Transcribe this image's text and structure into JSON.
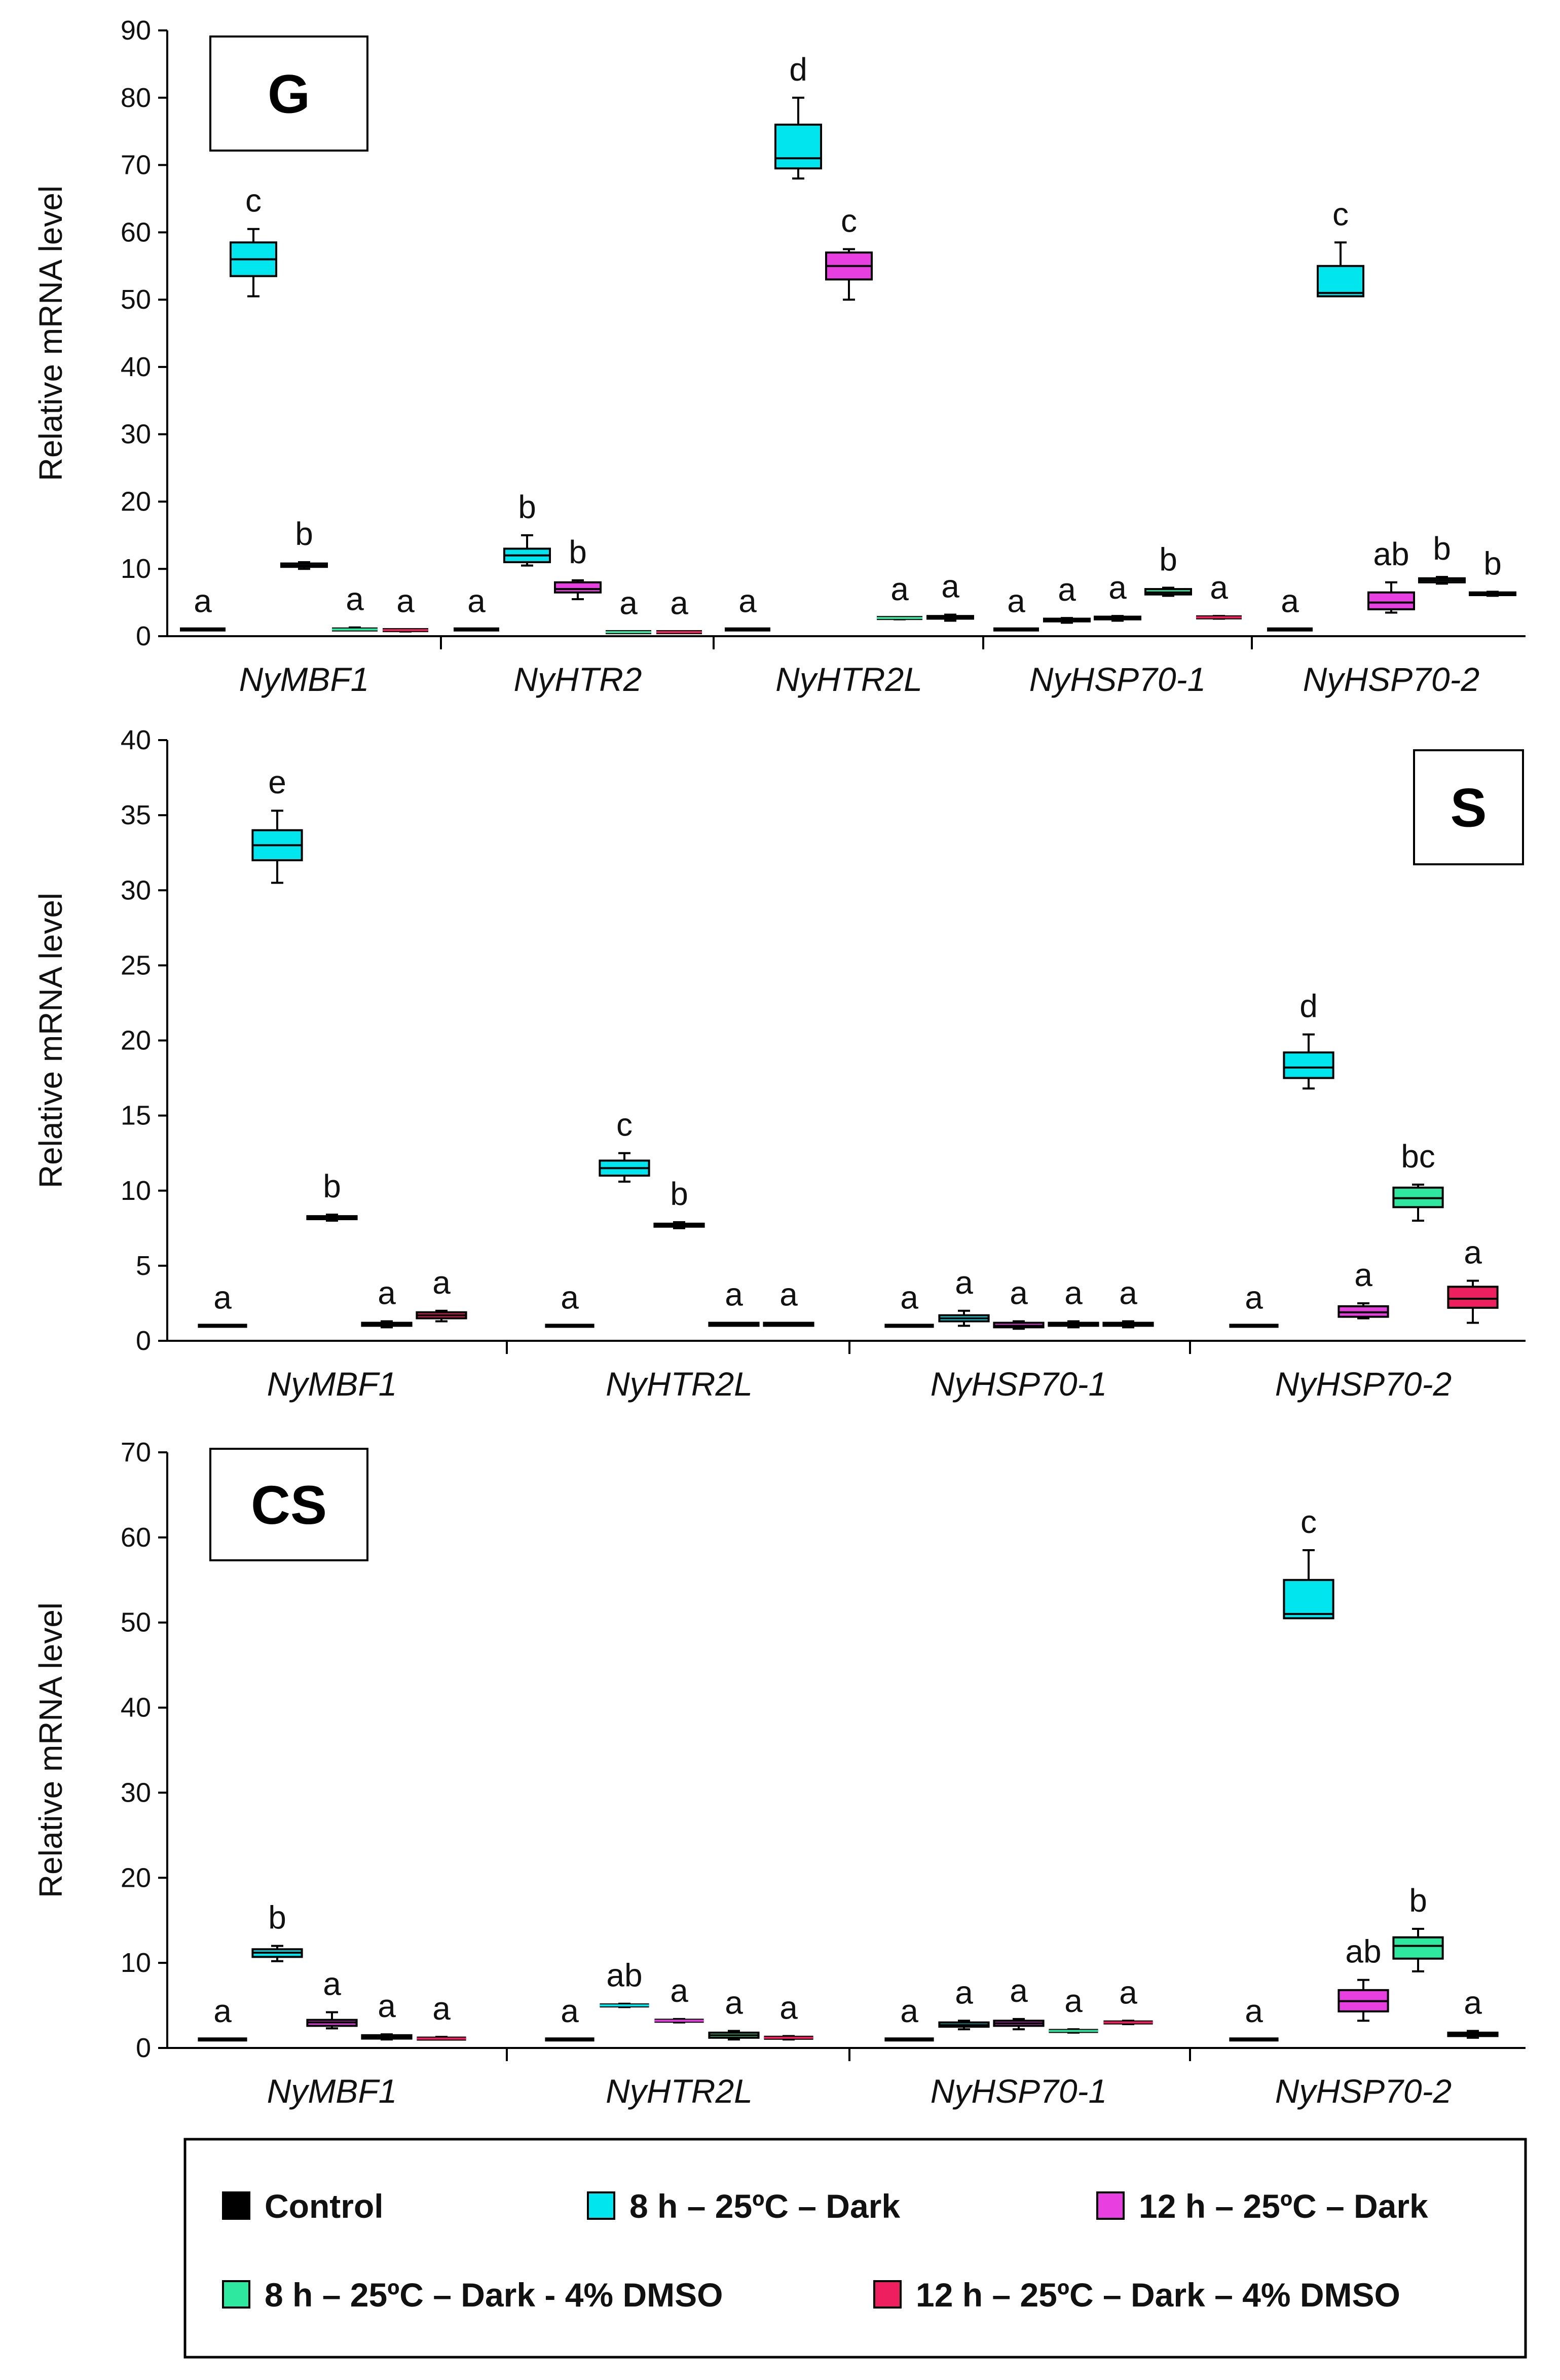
{
  "colors": {
    "control": "#000000",
    "h8_dark": "#00E5EE",
    "h12_dark": "#E83FE0",
    "h8_dmso": "#2EE8A0",
    "h12_dmso": "#EE1F5E"
  },
  "legend": {
    "items": [
      {
        "key": "control",
        "label": "Control"
      },
      {
        "key": "h8_dark",
        "label": "8 h – 25ºC – Dark"
      },
      {
        "key": "h12_dark",
        "label": "12 h – 25ºC – Dark"
      },
      {
        "key": "h8_dmso",
        "label": "8 h – 25ºC – Dark - 4% DMSO"
      },
      {
        "key": "h12_dmso",
        "label": "12 h – 25ºC – Dark – 4% DMSO"
      }
    ]
  },
  "chart_data": [
    {
      "type": "box",
      "panel_label": "G",
      "ylabel": "Relative  mRNA  level",
      "ylim": [
        0,
        90
      ],
      "yticks": [
        0,
        10,
        20,
        30,
        40,
        50,
        60,
        70,
        80,
        90
      ],
      "categories": [
        "NyMBF1",
        "NyHTR2",
        "NyHTR2L",
        "NyHSP70-1",
        "NyHSP70-2"
      ],
      "series_keys": [
        "control",
        "h8_dark",
        "h12_dark",
        "h8_dmso",
        "h12_dmso"
      ],
      "groups": [
        {
          "gene": "NyMBF1",
          "boxes": [
            {
              "s": "control",
              "stats": [
                1,
                1,
                1,
                1,
                1
              ],
              "letter": "a"
            },
            {
              "s": "h8_dark",
              "stats": [
                50.5,
                53.5,
                56,
                58.5,
                60.5
              ],
              "letter": "c"
            },
            {
              "s": "h12_dark",
              "stats": [
                10,
                10.3,
                10.5,
                10.8,
                11
              ],
              "letter": "b"
            },
            {
              "s": "h8_dmso",
              "stats": [
                1,
                1,
                1,
                1.2,
                1.3
              ],
              "letter": "a"
            },
            {
              "s": "h12_dmso",
              "stats": [
                0.7,
                0.8,
                0.9,
                1,
                1
              ],
              "letter": "a"
            }
          ]
        },
        {
          "gene": "NyHTR2",
          "boxes": [
            {
              "s": "control",
              "stats": [
                1,
                1,
                1,
                1,
                1
              ],
              "letter": "a"
            },
            {
              "s": "h8_dark",
              "stats": [
                10.5,
                11,
                12,
                13,
                15
              ],
              "letter": "b"
            },
            {
              "s": "h12_dark",
              "stats": [
                5.5,
                6.5,
                7,
                8,
                8.3
              ],
              "letter": "b"
            },
            {
              "s": "h8_dmso",
              "stats": [
                0.5,
                0.5,
                0.6,
                0.7,
                0.7
              ],
              "letter": "a"
            },
            {
              "s": "h12_dmso",
              "stats": [
                0.5,
                0.5,
                0.6,
                0.7,
                0.7
              ],
              "letter": "a"
            }
          ]
        },
        {
          "gene": "NyHTR2L",
          "boxes": [
            {
              "s": "control",
              "stats": [
                1,
                1,
                1,
                1,
                1
              ],
              "letter": "a"
            },
            {
              "s": "h8_dark",
              "stats": [
                68,
                69.5,
                71,
                76,
                80
              ],
              "letter": "d"
            },
            {
              "s": "h12_dark",
              "stats": [
                50,
                53,
                55,
                57,
                57.5
              ],
              "letter": "c"
            },
            {
              "s": "h8_dmso",
              "stats": [
                2.5,
                2.6,
                2.7,
                2.8,
                2.8
              ],
              "letter": "a"
            },
            {
              "s": "h12_dmso",
              "stats": [
                2.3,
                2.6,
                2.8,
                3,
                3.2
              ],
              "letter": "a"
            }
          ]
        },
        {
          "gene": "NyHSP70-1",
          "boxes": [
            {
              "s": "control",
              "stats": [
                1,
                1,
                1,
                1,
                1
              ],
              "letter": "a"
            },
            {
              "s": "h8_dark",
              "stats": [
                2,
                2.2,
                2.4,
                2.6,
                2.7
              ],
              "letter": "a"
            },
            {
              "s": "h12_dark",
              "stats": [
                2.3,
                2.5,
                2.7,
                2.9,
                3
              ],
              "letter": "a"
            },
            {
              "s": "h8_dmso",
              "stats": [
                6,
                6.2,
                6.5,
                7,
                7.2
              ],
              "letter": "b"
            },
            {
              "s": "h12_dmso",
              "stats": [
                2.6,
                2.7,
                2.8,
                2.9,
                3
              ],
              "letter": "a"
            }
          ]
        },
        {
          "gene": "NyHSP70-2",
          "boxes": [
            {
              "s": "control",
              "stats": [
                1,
                1,
                1,
                1,
                1
              ],
              "letter": "a"
            },
            {
              "s": "h8_dark",
              "stats": [
                50.5,
                50.5,
                51,
                55,
                58.5
              ],
              "letter": "c"
            },
            {
              "s": "h12_dark",
              "stats": [
                3.5,
                4,
                5,
                6.5,
                8
              ],
              "letter": "ab"
            },
            {
              "s": "h8_dmso",
              "stats": [
                7.8,
                8,
                8.3,
                8.6,
                8.8
              ],
              "letter": "b"
            },
            {
              "s": "h12_dmso",
              "stats": [
                6,
                6.1,
                6.3,
                6.5,
                6.6
              ],
              "letter": "b"
            }
          ]
        }
      ]
    },
    {
      "type": "box",
      "panel_label": "S",
      "ylabel": "Relative  mRNA  level",
      "ylim": [
        0,
        40
      ],
      "yticks": [
        0,
        5,
        10,
        15,
        20,
        25,
        30,
        35,
        40
      ],
      "categories": [
        "NyMBF1",
        "NyHTR2L",
        "NyHSP70-1",
        "NyHSP70-2"
      ],
      "series_keys": [
        "control",
        "h8_dark",
        "h12_dark",
        "h8_dmso",
        "h12_dmso"
      ],
      "groups": [
        {
          "gene": "NyMBF1",
          "boxes": [
            {
              "s": "control",
              "stats": [
                1,
                1,
                1,
                1,
                1
              ],
              "letter": "a"
            },
            {
              "s": "h8_dark",
              "stats": [
                30.5,
                32,
                33,
                34,
                35.3
              ],
              "letter": "e"
            },
            {
              "s": "h12_dark",
              "stats": [
                8,
                8.1,
                8.2,
                8.3,
                8.4
              ],
              "letter": "b"
            },
            {
              "s": "h8_dmso",
              "stats": [
                0.9,
                1,
                1.1,
                1.2,
                1.3
              ],
              "letter": "a"
            },
            {
              "s": "h12_dmso",
              "stats": [
                1.3,
                1.5,
                1.7,
                1.9,
                2
              ],
              "letter": "a"
            }
          ]
        },
        {
          "gene": "NyHTR2L",
          "boxes": [
            {
              "s": "control",
              "stats": [
                1,
                1,
                1,
                1,
                1
              ],
              "letter": "a"
            },
            {
              "s": "h8_dark",
              "stats": [
                10.6,
                11,
                11.5,
                12,
                12.5
              ],
              "letter": "c"
            },
            {
              "s": "h12_dark",
              "stats": [
                7.5,
                7.6,
                7.7,
                7.8,
                7.9
              ],
              "letter": "b"
            },
            {
              "s": "h8_dmso",
              "stats": [
                1,
                1,
                1.1,
                1.2,
                1.2
              ],
              "letter": "a"
            },
            {
              "s": "h12_dmso",
              "stats": [
                1,
                1,
                1.1,
                1.2,
                1.2
              ],
              "letter": "a"
            }
          ]
        },
        {
          "gene": "NyHSP70-1",
          "boxes": [
            {
              "s": "control",
              "stats": [
                1,
                1,
                1,
                1,
                1
              ],
              "letter": "a"
            },
            {
              "s": "h8_dark",
              "stats": [
                1,
                1.3,
                1.5,
                1.7,
                2
              ],
              "letter": "a"
            },
            {
              "s": "h12_dark",
              "stats": [
                0.8,
                0.9,
                1,
                1.2,
                1.3
              ],
              "letter": "a"
            },
            {
              "s": "h8_dmso",
              "stats": [
                0.9,
                1,
                1.1,
                1.2,
                1.3
              ],
              "letter": "a"
            },
            {
              "s": "h12_dmso",
              "stats": [
                0.9,
                1,
                1.1,
                1.2,
                1.3
              ],
              "letter": "a"
            }
          ]
        },
        {
          "gene": "NyHSP70-2",
          "boxes": [
            {
              "s": "control",
              "stats": [
                1,
                1,
                1,
                1,
                1
              ],
              "letter": "a"
            },
            {
              "s": "h8_dark",
              "stats": [
                16.8,
                17.5,
                18.2,
                19.2,
                20.4
              ],
              "letter": "d"
            },
            {
              "s": "h12_dark",
              "stats": [
                1.5,
                1.6,
                1.9,
                2.3,
                2.5
              ],
              "letter": "a"
            },
            {
              "s": "h8_dmso",
              "stats": [
                8,
                8.9,
                9.5,
                10.2,
                10.4
              ],
              "letter": "bc"
            },
            {
              "s": "h12_dmso",
              "stats": [
                1.2,
                2.2,
                2.8,
                3.6,
                4
              ],
              "letter": "a"
            }
          ]
        }
      ]
    },
    {
      "type": "box",
      "panel_label": "CS",
      "ylabel": "Relative  mRNA  level",
      "ylim": [
        0,
        70
      ],
      "yticks": [
        0,
        10,
        20,
        30,
        40,
        50,
        60,
        70
      ],
      "categories": [
        "NyMBF1",
        "NyHTR2L",
        "NyHSP70-1",
        "NyHSP70-2"
      ],
      "series_keys": [
        "control",
        "h8_dark",
        "h12_dark",
        "h8_dmso",
        "h12_dmso"
      ],
      "groups": [
        {
          "gene": "NyMBF1",
          "boxes": [
            {
              "s": "control",
              "stats": [
                1,
                1,
                1,
                1,
                1
              ],
              "letter": "a"
            },
            {
              "s": "h8_dark",
              "stats": [
                10.2,
                10.7,
                11.2,
                11.6,
                12
              ],
              "letter": "b"
            },
            {
              "s": "h12_dark",
              "stats": [
                2.3,
                2.6,
                3,
                3.3,
                4.2
              ],
              "letter": "a"
            },
            {
              "s": "h8_dmso",
              "stats": [
                1,
                1.1,
                1.3,
                1.5,
                1.6
              ],
              "letter": "a"
            },
            {
              "s": "h12_dmso",
              "stats": [
                1,
                1,
                1.1,
                1.2,
                1.3
              ],
              "letter": "a"
            }
          ]
        },
        {
          "gene": "NyHTR2L",
          "boxes": [
            {
              "s": "control",
              "stats": [
                1,
                1,
                1,
                1,
                1
              ],
              "letter": "a"
            },
            {
              "s": "h8_dark",
              "stats": [
                4.8,
                4.9,
                5,
                5.1,
                5.2
              ],
              "letter": "ab"
            },
            {
              "s": "h12_dark",
              "stats": [
                3,
                3.1,
                3.2,
                3.3,
                3.4
              ],
              "letter": "a"
            },
            {
              "s": "h8_dmso",
              "stats": [
                1,
                1.2,
                1.5,
                1.8,
                2
              ],
              "letter": "a"
            },
            {
              "s": "h12_dmso",
              "stats": [
                1,
                1.1,
                1.2,
                1.3,
                1.4
              ],
              "letter": "a"
            }
          ]
        },
        {
          "gene": "NyHSP70-1",
          "boxes": [
            {
              "s": "control",
              "stats": [
                1,
                1,
                1,
                1,
                1
              ],
              "letter": "a"
            },
            {
              "s": "h8_dark",
              "stats": [
                2.2,
                2.5,
                2.7,
                3,
                3.2
              ],
              "letter": "a"
            },
            {
              "s": "h12_dark",
              "stats": [
                2.2,
                2.6,
                2.9,
                3.2,
                3.4
              ],
              "letter": "a"
            },
            {
              "s": "h8_dmso",
              "stats": [
                1.8,
                1.9,
                2,
                2.1,
                2.2
              ],
              "letter": "a"
            },
            {
              "s": "h12_dmso",
              "stats": [
                2.8,
                2.9,
                3,
                3.1,
                3.2
              ],
              "letter": "a"
            }
          ]
        },
        {
          "gene": "NyHSP70-2",
          "boxes": [
            {
              "s": "control",
              "stats": [
                1,
                1,
                1,
                1,
                1
              ],
              "letter": "a"
            },
            {
              "s": "h8_dark",
              "stats": [
                50.5,
                50.5,
                51,
                55,
                58.5
              ],
              "letter": "c"
            },
            {
              "s": "h12_dark",
              "stats": [
                3.2,
                4.3,
                5.5,
                6.8,
                8
              ],
              "letter": "ab"
            },
            {
              "s": "h8_dmso",
              "stats": [
                9,
                10.5,
                12,
                13,
                14
              ],
              "letter": "b"
            },
            {
              "s": "h12_dmso",
              "stats": [
                1.2,
                1.4,
                1.6,
                1.8,
                2
              ],
              "letter": "a"
            }
          ]
        }
      ]
    }
  ]
}
